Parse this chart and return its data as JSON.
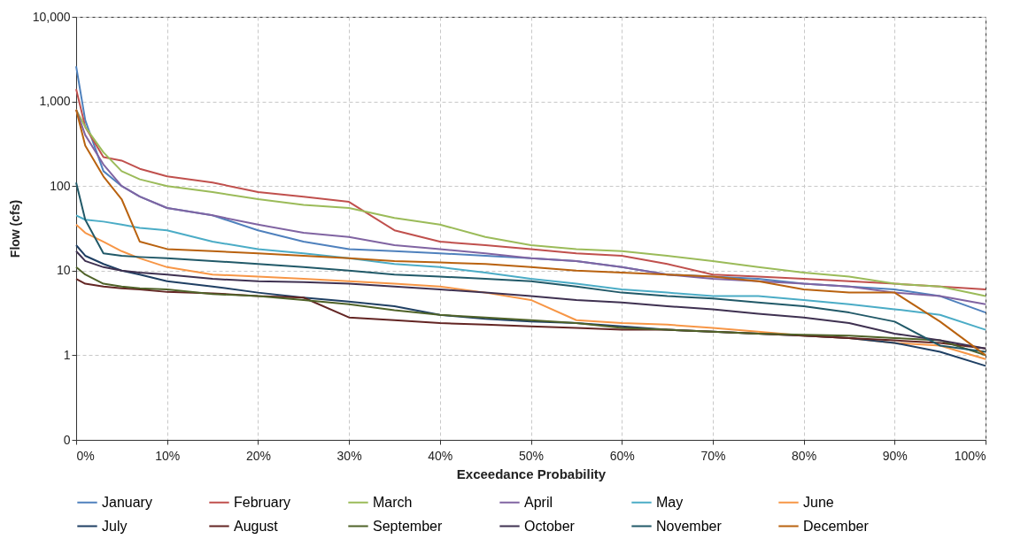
{
  "chart_data": {
    "type": "line",
    "xlabel": "Exceedance Probability",
    "ylabel": "Flow (cfs)",
    "log": "y",
    "grid": true,
    "legend": "bottom",
    "line_style": "solid",
    "marker": "none",
    "x": [
      0,
      1,
      3,
      5,
      7,
      10,
      15,
      20,
      25,
      30,
      35,
      40,
      45,
      50,
      55,
      60,
      65,
      70,
      75,
      80,
      85,
      90,
      95,
      100
    ],
    "xlim": [
      0,
      100
    ],
    "xticks": [
      {
        "value": 0,
        "label": "0%"
      },
      {
        "value": 10,
        "label": "10%"
      },
      {
        "value": 20,
        "label": "20%"
      },
      {
        "value": 30,
        "label": "30%"
      },
      {
        "value": 40,
        "label": "40%"
      },
      {
        "value": 50,
        "label": "50%"
      },
      {
        "value": 60,
        "label": "60%"
      },
      {
        "value": 70,
        "label": "70%"
      },
      {
        "value": 80,
        "label": "80%"
      },
      {
        "value": 90,
        "label": "90%"
      },
      {
        "value": 100,
        "label": "100%"
      }
    ],
    "ylim": [
      0.1,
      10000
    ],
    "yticks": [
      {
        "value": 0.1,
        "label": "0"
      },
      1,
      10,
      100,
      {
        "value": 1000,
        "label": "1,000"
      },
      {
        "value": 10000,
        "label": "10,000"
      }
    ],
    "series": [
      {
        "name": "January",
        "color": "#4f81bd",
        "values": [
          2600,
          600,
          150,
          100,
          75,
          55,
          45,
          30,
          22,
          18,
          17,
          16,
          15,
          14,
          13,
          11,
          9,
          8.5,
          8,
          7,
          6.5,
          6,
          5,
          3.2
        ]
      },
      {
        "name": "February",
        "color": "#c0504d",
        "values": [
          1400,
          500,
          220,
          200,
          160,
          130,
          110,
          85,
          75,
          65,
          30,
          22,
          20,
          18,
          16,
          15,
          12,
          9,
          8.5,
          8,
          7.5,
          7,
          6.5,
          6
        ]
      },
      {
        "name": "March",
        "color": "#9bbb59",
        "values": [
          800,
          500,
          250,
          150,
          120,
          100,
          85,
          70,
          60,
          55,
          42,
          35,
          25,
          20,
          18,
          17,
          15,
          13,
          11,
          9.5,
          8.5,
          7,
          6.5,
          5
        ]
      },
      {
        "name": "April",
        "color": "#8064a2",
        "values": [
          800,
          400,
          180,
          100,
          75,
          55,
          45,
          35,
          28,
          25,
          20,
          18,
          16,
          14,
          13,
          11,
          9,
          8,
          7.5,
          7,
          6.5,
          5.5,
          5,
          4
        ]
      },
      {
        "name": "May",
        "color": "#4bacc6",
        "values": [
          45,
          40,
          38,
          35,
          32,
          30,
          22,
          18,
          16,
          14,
          12,
          11,
          9.5,
          8,
          7,
          6,
          5.5,
          5,
          5,
          4.5,
          4,
          3.5,
          3,
          2
        ]
      },
      {
        "name": "June",
        "color": "#f79646",
        "values": [
          35,
          28,
          22,
          17,
          14,
          11,
          9,
          8.5,
          8,
          7.5,
          7,
          6.5,
          5.5,
          4.5,
          2.6,
          2.4,
          2.3,
          2.1,
          1.9,
          1.7,
          1.6,
          1.4,
          1.3,
          0.9
        ]
      },
      {
        "name": "July",
        "color": "#1f3f63",
        "values": [
          20,
          15,
          12,
          10,
          9,
          7.5,
          6.5,
          5.5,
          4.8,
          4.3,
          3.8,
          3,
          2.7,
          2.5,
          2.4,
          2.2,
          2,
          1.9,
          1.8,
          1.7,
          1.6,
          1.4,
          1.1,
          0.75
        ]
      },
      {
        "name": "August",
        "color": "#632523",
        "values": [
          8,
          7,
          6.5,
          6.2,
          6,
          5.6,
          5.4,
          5,
          4.8,
          2.8,
          2.6,
          2.4,
          2.3,
          2.2,
          2.1,
          2,
          2,
          1.9,
          1.8,
          1.7,
          1.6,
          1.5,
          1.4,
          1.2
        ]
      },
      {
        "name": "September",
        "color": "#4f6228",
        "values": [
          11,
          9,
          7,
          6.5,
          6.2,
          6,
          5.3,
          5,
          4.5,
          4,
          3.4,
          3,
          2.8,
          2.6,
          2.4,
          2.1,
          2,
          1.9,
          1.8,
          1.75,
          1.7,
          1.6,
          1.5,
          1
        ]
      },
      {
        "name": "October",
        "color": "#3f3151",
        "values": [
          17,
          13,
          11,
          10,
          9.5,
          9,
          8,
          7.5,
          7.3,
          7,
          6.5,
          6,
          5.5,
          5,
          4.5,
          4.2,
          3.8,
          3.5,
          3.1,
          2.8,
          2.4,
          1.8,
          1.5,
          1.2
        ]
      },
      {
        "name": "November",
        "color": "#215968",
        "values": [
          110,
          40,
          16,
          15,
          14.5,
          14,
          13,
          12,
          11,
          10,
          9,
          8.5,
          8,
          7.5,
          6.5,
          5.5,
          5,
          4.7,
          4.2,
          3.8,
          3.2,
          2.5,
          1.3,
          1.1
        ]
      },
      {
        "name": "December",
        "color": "#b9620f",
        "values": [
          800,
          300,
          130,
          70,
          22,
          18,
          17,
          16,
          15,
          14,
          13,
          12.5,
          12,
          11,
          10,
          9.5,
          9,
          8.5,
          7.5,
          6,
          5.5,
          5.5,
          2.5,
          1
        ]
      }
    ]
  }
}
